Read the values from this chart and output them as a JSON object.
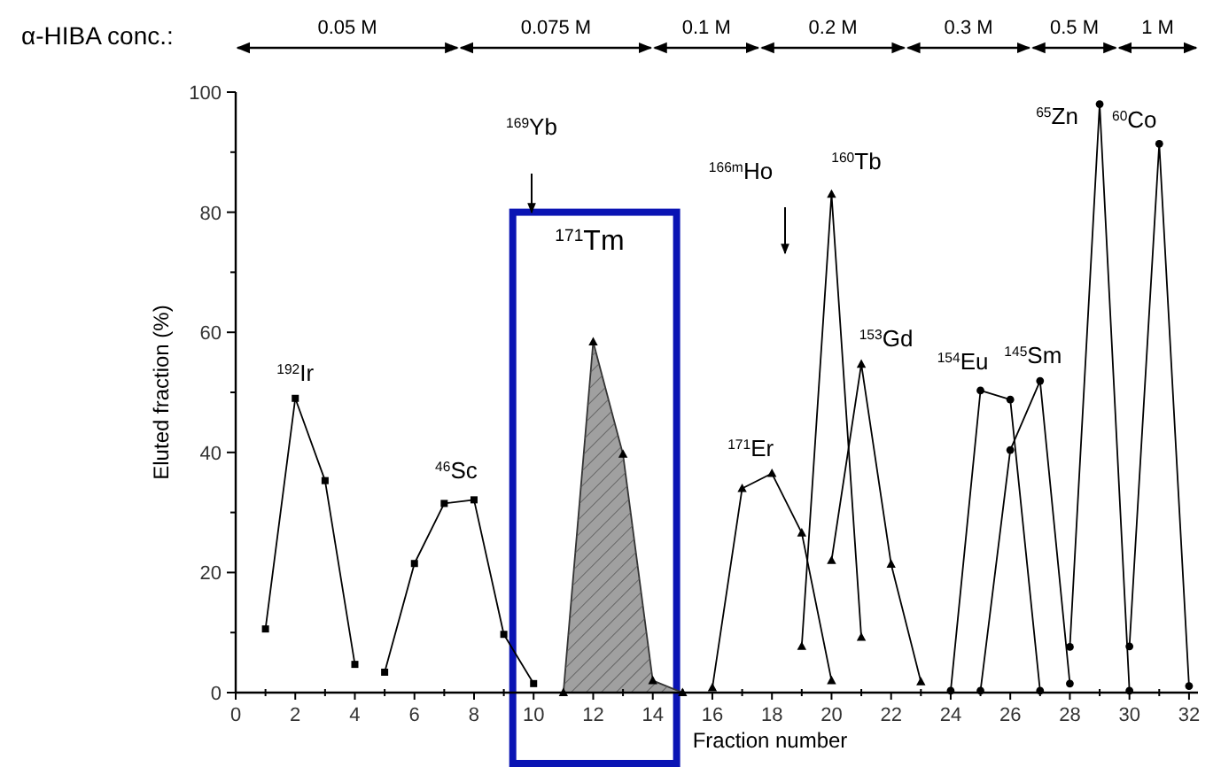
{
  "chart_data": {
    "type": "line",
    "xlabel": "Fraction number",
    "ylabel": "Eluted fraction (%)",
    "xlim": [
      0,
      32.3
    ],
    "ylim": [
      0,
      100
    ],
    "xticks": [
      0,
      2,
      4,
      6,
      8,
      10,
      12,
      14,
      16,
      18,
      20,
      22,
      24,
      26,
      28,
      30,
      32
    ],
    "yticks": [
      0,
      20,
      40,
      60,
      80,
      100
    ],
    "grid": false,
    "series": [
      {
        "name": "$^{192}$Ir",
        "color": "#000000",
        "marker": "square",
        "x": [
          1,
          2,
          3,
          4
        ],
        "values": [
          10.6,
          49,
          35.3,
          4.7
        ]
      },
      {
        "name": "$^{46}$Sc",
        "color": "#000000",
        "marker": "square",
        "x": [
          5,
          6,
          7,
          8,
          9,
          10
        ],
        "values": [
          3.4,
          21.5,
          31.5,
          32.1,
          9.7,
          1.5
        ]
      },
      {
        "name": "$^{171}$Tm",
        "type": "area",
        "color": "#a0a0a0",
        "marker": "triangle",
        "x": [
          11,
          12,
          13,
          14,
          15
        ],
        "values": [
          0,
          58.4,
          39.7,
          2,
          0
        ]
      },
      {
        "name": "$^{171}$Er",
        "color": "#000000",
        "marker": "triangle",
        "x": [
          16,
          17,
          18,
          19,
          20
        ],
        "values": [
          0.8,
          34,
          36.5,
          26.6,
          2
        ]
      },
      {
        "name": "$^{160}$Tb",
        "color": "#000000",
        "marker": "triangle",
        "x": [
          19,
          20,
          21
        ],
        "values": [
          7.7,
          83,
          9.2
        ]
      },
      {
        "name": "$^{153}$Gd",
        "color": "#000000",
        "marker": "triangle",
        "x": [
          20,
          21,
          22,
          23
        ],
        "values": [
          22,
          54.7,
          21.4,
          1.8
        ]
      },
      {
        "name": "$^{154}$Eu",
        "color": "#000000",
        "marker": "circle",
        "x": [
          24,
          25,
          26,
          27
        ],
        "values": [
          0.3,
          50.3,
          48.8,
          0.3
        ]
      },
      {
        "name": "$^{145}$Sm",
        "color": "#000000",
        "marker": "circle",
        "x": [
          25,
          26,
          27,
          28
        ],
        "values": [
          0.3,
          40.4,
          51.9,
          1.5
        ]
      },
      {
        "name": "$^{65}$Zn",
        "color": "#000000",
        "marker": "circle",
        "x": [
          28,
          29,
          30
        ],
        "values": [
          7.6,
          98,
          0.3
        ]
      },
      {
        "name": "$^{60}$Co",
        "color": "#000000",
        "marker": "circle",
        "x": [
          30,
          31,
          32
        ],
        "values": [
          7.7,
          91.4,
          1.1
        ]
      }
    ],
    "annotations": [
      "α-HIBA conc.:",
      "0.05 M",
      "0.075 M",
      "0.1 M",
      "0.2 M",
      "0.3 M",
      "0.5 M",
      "1 M",
      "$^{169}$Yb",
      "$^{166m}$Ho"
    ]
  }
}
